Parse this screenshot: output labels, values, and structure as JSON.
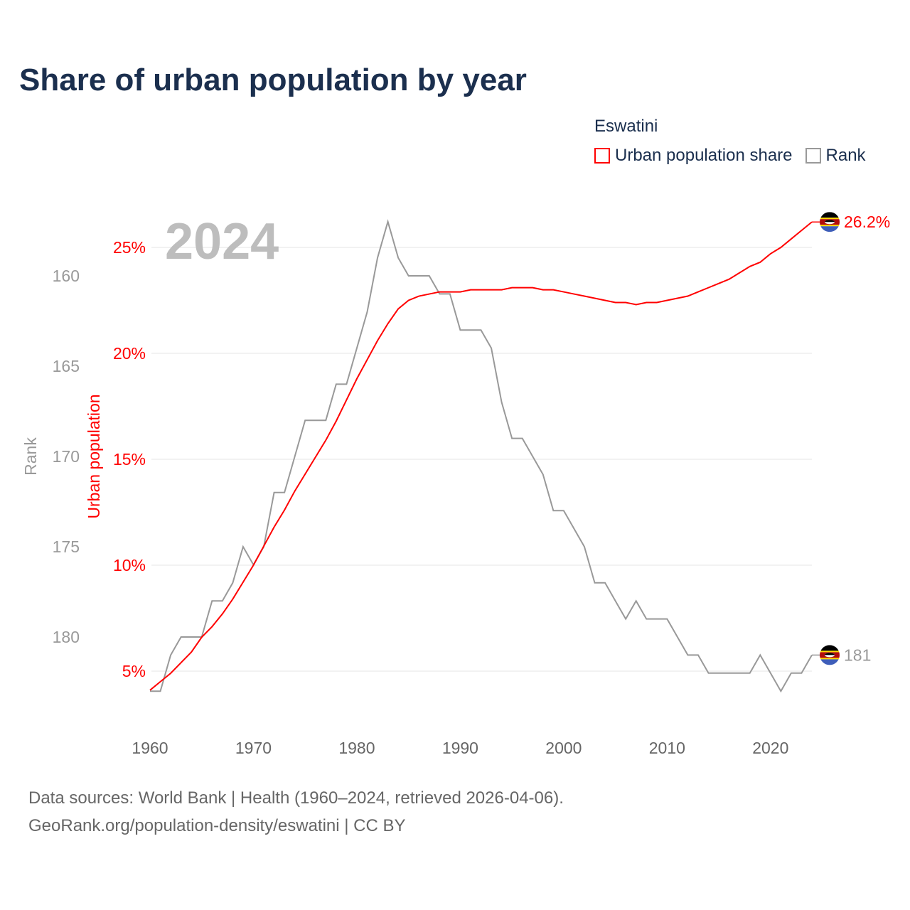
{
  "title": "Share of urban population by year",
  "legend": {
    "title": "Eswatini",
    "items": [
      {
        "label": "Urban population share",
        "color": "#ff0000"
      },
      {
        "label": "Rank",
        "color": "#999999"
      }
    ]
  },
  "year_watermark": "2024",
  "end_labels": {
    "urban": "26.2%",
    "rank": "181"
  },
  "flag_icon": "eswatini-flag-icon",
  "footer": {
    "line1": "Data sources: World Bank | Health (1960–2024, retrieved 2026-04-06).",
    "line2": "GeoRank.org/population-density/eswatini | CC BY"
  },
  "chart_data": {
    "type": "line",
    "title": "Share of urban population by year",
    "xlabel": "",
    "ylabel": "Urban population",
    "y2label": "Rank",
    "x": [
      1960,
      1961,
      1962,
      1963,
      1964,
      1965,
      1966,
      1967,
      1968,
      1969,
      1970,
      1971,
      1972,
      1973,
      1974,
      1975,
      1976,
      1977,
      1978,
      1979,
      1980,
      1981,
      1982,
      1983,
      1984,
      1985,
      1986,
      1987,
      1988,
      1989,
      1990,
      1991,
      1992,
      1993,
      1994,
      1995,
      1996,
      1997,
      1998,
      1999,
      2000,
      2001,
      2002,
      2003,
      2004,
      2005,
      2006,
      2007,
      2008,
      2009,
      2010,
      2011,
      2012,
      2013,
      2014,
      2015,
      2016,
      2017,
      2018,
      2019,
      2020,
      2021,
      2022,
      2023,
      2024
    ],
    "x_ticks": [
      "1960",
      "1970",
      "1980",
      "1990",
      "2000",
      "2010",
      "2020"
    ],
    "xlim": [
      1960,
      2024
    ],
    "y_ticks": [
      "5%",
      "10%",
      "15%",
      "20%",
      "25%"
    ],
    "y_tick_values": [
      5,
      10,
      15,
      20,
      25
    ],
    "ylim": [
      4.1,
      26.2
    ],
    "y2_ticks": [
      "160",
      "165",
      "170",
      "175",
      "180"
    ],
    "y2_tick_values": [
      160,
      165,
      170,
      175,
      180
    ],
    "y2_inverted": true,
    "grid": true,
    "legend_position": "top-right",
    "series": [
      {
        "name": "Urban population share",
        "axis": "left",
        "color": "#ff0000",
        "values": [
          4.1,
          4.5,
          4.9,
          5.4,
          5.9,
          6.6,
          7.1,
          7.7,
          8.4,
          9.2,
          10.0,
          10.9,
          11.8,
          12.6,
          13.5,
          14.3,
          15.1,
          15.9,
          16.8,
          17.8,
          18.8,
          19.7,
          20.6,
          21.4,
          22.1,
          22.5,
          22.7,
          22.8,
          22.9,
          22.9,
          22.9,
          23.0,
          23.0,
          23.0,
          23.0,
          23.1,
          23.1,
          23.1,
          23.0,
          23.0,
          22.9,
          22.8,
          22.7,
          22.6,
          22.5,
          22.4,
          22.4,
          22.3,
          22.4,
          22.4,
          22.5,
          22.6,
          22.7,
          22.9,
          23.1,
          23.3,
          23.5,
          23.8,
          24.1,
          24.3,
          24.7,
          25.0,
          25.4,
          25.8,
          26.2
        ]
      },
      {
        "name": "Rank",
        "axis": "right",
        "color": "#999999",
        "values": [
          183,
          183,
          181,
          180,
          180,
          180,
          178,
          178,
          177,
          175,
          176,
          175,
          172,
          172,
          170,
          168,
          168,
          168,
          166,
          166,
          164,
          162,
          159,
          157,
          159,
          160,
          160,
          160,
          161,
          161,
          163,
          163,
          163,
          164,
          167,
          169,
          169,
          170,
          171,
          173,
          173,
          174,
          175,
          177,
          177,
          178,
          179,
          178,
          179,
          179,
          179,
          180,
          181,
          181,
          182,
          182,
          182,
          182,
          182,
          181,
          182,
          183,
          182,
          182,
          181
        ]
      }
    ]
  }
}
